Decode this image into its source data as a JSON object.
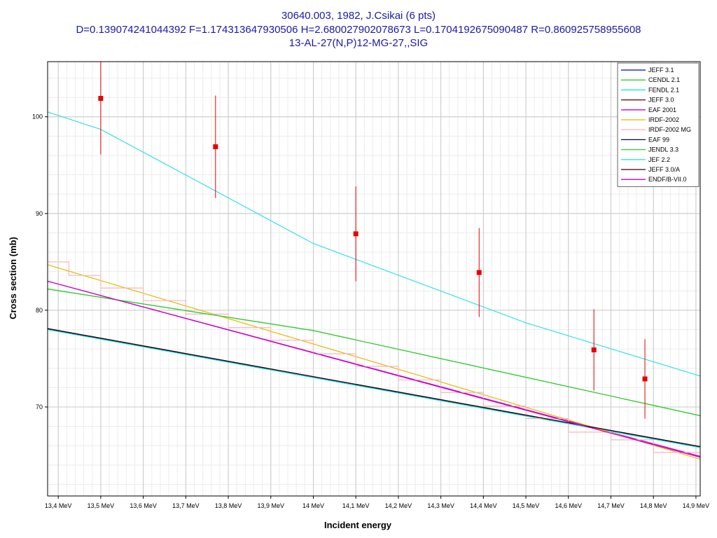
{
  "title_lines": [
    "30640.003, 1982, J.Csikai (6 pts)",
    "D=0.139074241044392 F=1.174313647930506 H=2.680027902078673 L=0.1704192675090487 R=0.860925758955608",
    "13-AL-27(N,P)12-MG-27,,SIG"
  ],
  "chart_data": {
    "type": "line",
    "xlabel": "Incident energy",
    "ylabel": "Cross section (mb)",
    "xlim": [
      13.375,
      14.91
    ],
    "ylim": [
      60.8,
      105.7
    ],
    "grid": true,
    "legend_position": "top-right",
    "x_ticks": [
      {
        "v": 13.4,
        "label": "13,4 MeV"
      },
      {
        "v": 13.5,
        "label": "13,5 MeV"
      },
      {
        "v": 13.6,
        "label": "13,6 MeV"
      },
      {
        "v": 13.7,
        "label": "13,7 MeV"
      },
      {
        "v": 13.8,
        "label": "13,8 MeV"
      },
      {
        "v": 13.9,
        "label": "13,9 MeV"
      },
      {
        "v": 14.0,
        "label": "14 MeV"
      },
      {
        "v": 14.1,
        "label": "14,1 MeV"
      },
      {
        "v": 14.2,
        "label": "14,2 MeV"
      },
      {
        "v": 14.3,
        "label": "14,3 MeV"
      },
      {
        "v": 14.4,
        "label": "14,4 MeV"
      },
      {
        "v": 14.5,
        "label": "14,5 MeV"
      },
      {
        "v": 14.6,
        "label": "14,6 MeV"
      },
      {
        "v": 14.7,
        "label": "14,7 MeV"
      },
      {
        "v": 14.8,
        "label": "14,8 MeV"
      },
      {
        "v": 14.9,
        "label": "14,9 MeV"
      }
    ],
    "y_ticks": [
      {
        "v": 70,
        "label": "70"
      },
      {
        "v": 80,
        "label": "80"
      },
      {
        "v": 90,
        "label": "90"
      },
      {
        "v": 100,
        "label": "100"
      }
    ],
    "series": [
      {
        "name": "JEFF 3.1",
        "color": "#0000cc",
        "x": [
          13.375,
          14.91
        ],
        "y": [
          78.1,
          65.9
        ]
      },
      {
        "name": "CENDL 2.1",
        "color": "#33cc33",
        "x": [
          13.375,
          14.0,
          14.91
        ],
        "y": [
          82.2,
          77.9,
          69.1
        ]
      },
      {
        "name": "FENDL 2.1",
        "color": "#00e5e5",
        "x": [
          13.375,
          14.91
        ],
        "y": [
          78.0,
          65.8
        ]
      },
      {
        "name": "JEFF 3.0",
        "color": "#660000",
        "x": [
          13.375,
          14.91
        ],
        "y": [
          78.1,
          65.9
        ]
      },
      {
        "name": "EAF 2001",
        "color": "#cc00cc",
        "x": [
          13.375,
          14.91
        ],
        "y": [
          83.0,
          64.9
        ]
      },
      {
        "name": "IRDF-2002",
        "color": "#e6b800",
        "x": [
          13.375,
          14.91
        ],
        "y": [
          84.7,
          64.6
        ]
      },
      {
        "name": "IRDF-2002 MG",
        "color": "#f4b8b8",
        "step": true,
        "edges": [
          13.375,
          13.425,
          13.5,
          13.6,
          13.7,
          13.8,
          13.9,
          14.0,
          14.1,
          14.2,
          14.3,
          14.4,
          14.5,
          14.6,
          14.7,
          14.8,
          14.91
        ],
        "values": [
          85.0,
          83.6,
          82.3,
          81.0,
          79.6,
          78.2,
          76.9,
          75.5,
          74.2,
          72.8,
          71.5,
          70.1,
          68.8,
          67.4,
          66.6,
          65.3
        ]
      },
      {
        "name": "EAF 99",
        "color": "#000066",
        "x": [
          13.375,
          14.91
        ],
        "y": [
          78.1,
          65.9
        ]
      },
      {
        "name": "JENDL 3.3",
        "color": "#33cc33",
        "x": [
          13.375,
          14.0,
          14.91
        ],
        "y": [
          82.2,
          77.9,
          69.1
        ]
      },
      {
        "name": "JEF 2.2",
        "color": "#33e0e8",
        "x": [
          13.375,
          13.5,
          14.0,
          14.5,
          14.91
        ],
        "y": [
          100.5,
          98.7,
          86.9,
          78.7,
          73.2
        ]
      },
      {
        "name": "JEFF 3.0/A",
        "color": "#330000",
        "x": [
          13.375,
          14.91
        ],
        "y": [
          78.1,
          65.9
        ]
      },
      {
        "name": "ENDF/B-VII.0",
        "color": "#cc00cc",
        "x": [
          13.375,
          14.91
        ],
        "y": [
          83.0,
          64.8
        ]
      }
    ],
    "points": [
      {
        "x": 13.5,
        "y": 101.9,
        "err": 5.8
      },
      {
        "x": 13.77,
        "y": 96.9,
        "err": 5.3
      },
      {
        "x": 14.1,
        "y": 87.9,
        "err": 4.9
      },
      {
        "x": 14.39,
        "y": 83.9,
        "err": 4.6
      },
      {
        "x": 14.66,
        "y": 75.9,
        "err": 4.2
      },
      {
        "x": 14.78,
        "y": 72.9,
        "err": 4.1
      }
    ],
    "point_color": "#e60000"
  }
}
